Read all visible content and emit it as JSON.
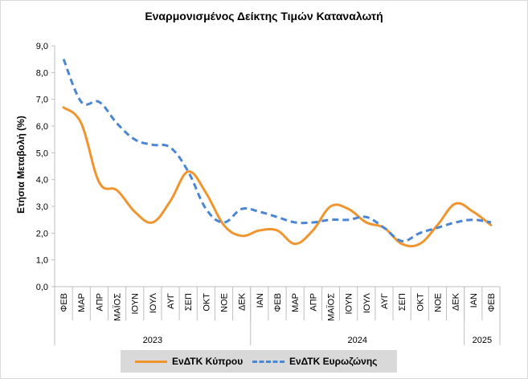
{
  "chart_data": {
    "type": "line",
    "title": "Εναρμονισμένος Δείκτης Τιμών Καταναλωτή",
    "ylabel": "Ετήσια Μεταβολή (%)",
    "xlabel": "",
    "ylim": [
      0,
      9
    ],
    "yticks": [
      "0,0",
      "1,0",
      "2,0",
      "3,0",
      "4,0",
      "5,0",
      "6,0",
      "7,0",
      "8,0",
      "9,0"
    ],
    "categories": [
      "ΦΕΒ",
      "ΜΑΡ",
      "ΑΠΡ",
      "ΜΑΪΟΣ",
      "ΙΟΥΝ",
      "ΙΟΥΛ",
      "ΑΥΓ",
      "ΣΕΠ",
      "ΟΚΤ",
      "ΝΟΕ",
      "ΔΕΚ",
      "ΙΑΝ",
      "ΦΕΒ",
      "ΜΑΡ",
      "ΑΠΡ",
      "ΜΑΪΟΣ",
      "ΙΟΥΝ",
      "ΙΟΥΛ",
      "ΑΥΓ",
      "ΣΕΠ",
      "ΟΚΤ",
      "ΝΟΕ",
      "ΔΕΚ",
      "ΙΑΝ",
      "ΦΕΒ"
    ],
    "years": [
      {
        "label": "2023",
        "start": 0,
        "end": 10
      },
      {
        "label": "2024",
        "start": 11,
        "end": 22
      },
      {
        "label": "2025",
        "start": 23,
        "end": 24
      }
    ],
    "grid": false,
    "legend_position": "bottom",
    "series": [
      {
        "name": "ΕνΔΤΚ Κύπρου",
        "color": "#f0952e",
        "style": "solid",
        "values": [
          6.7,
          6.1,
          3.9,
          3.6,
          2.8,
          2.4,
          3.2,
          4.3,
          3.5,
          2.3,
          1.9,
          2.1,
          2.1,
          1.6,
          2.1,
          3.0,
          2.9,
          2.4,
          2.2,
          1.6,
          1.6,
          2.3,
          3.1,
          2.8,
          2.3
        ]
      },
      {
        "name": "ΕνΔΤΚ Ευρωζώνης",
        "color": "#4a86d4",
        "style": "dashed",
        "values": [
          8.5,
          6.9,
          6.9,
          6.1,
          5.5,
          5.3,
          5.2,
          4.3,
          2.9,
          2.4,
          2.9,
          2.8,
          2.6,
          2.4,
          2.4,
          2.5,
          2.5,
          2.6,
          2.2,
          1.7,
          2.0,
          2.2,
          2.4,
          2.5,
          2.4
        ]
      }
    ]
  }
}
